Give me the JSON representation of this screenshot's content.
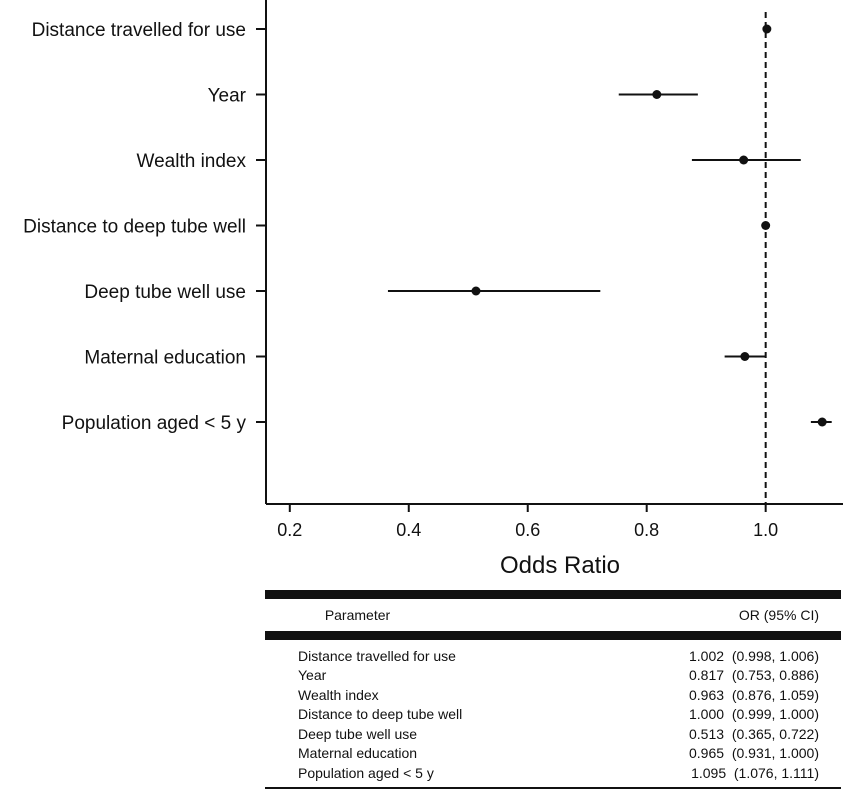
{
  "chart_data": {
    "type": "forest",
    "xlabel": "Odds Ratio",
    "xlim": [
      0.16,
      1.13
    ],
    "xticks": [
      0.2,
      0.4,
      0.6,
      0.8,
      1.0
    ],
    "xtick_labels": [
      "0.2",
      "0.4",
      "0.6",
      "0.8",
      "1.0"
    ],
    "reference_line": 1.0,
    "rows": [
      {
        "label": "Distance travelled for use",
        "or": 1.002,
        "lo": 0.998,
        "hi": 1.006
      },
      {
        "label": "Year",
        "or": 0.817,
        "lo": 0.753,
        "hi": 0.886
      },
      {
        "label": "Wealth index",
        "or": 0.963,
        "lo": 0.876,
        "hi": 1.059
      },
      {
        "label": "Distance to deep tube well",
        "or": 1.0,
        "lo": 0.999,
        "hi": 1.0
      },
      {
        "label": "Deep tube well use",
        "or": 0.513,
        "lo": 0.365,
        "hi": 0.722
      },
      {
        "label": "Maternal education",
        "or": 0.965,
        "lo": 0.931,
        "hi": 1.0
      },
      {
        "label": "Population aged < 5 y",
        "or": 1.095,
        "lo": 1.076,
        "hi": 1.111
      }
    ]
  },
  "table": {
    "header_param": "Parameter",
    "header_or": "OR (95% CI)",
    "rows": [
      {
        "param": "Distance travelled for use",
        "or": "1.002  (0.998, 1.006)"
      },
      {
        "param": "Year",
        "or": "0.817  (0.753, 0.886)"
      },
      {
        "param": "Wealth index",
        "or": "0.963  (0.876, 1.059)"
      },
      {
        "param": "Distance to deep tube well",
        "or": "1.000  (0.999, 1.000)"
      },
      {
        "param": "Deep tube well use",
        "or": "0.513  (0.365, 0.722)"
      },
      {
        "param": "Maternal education",
        "or": "0.965  (0.931, 1.000)"
      },
      {
        "param": "Population aged < 5 y",
        "or": "1.095  (1.076, 1.111)"
      }
    ]
  }
}
